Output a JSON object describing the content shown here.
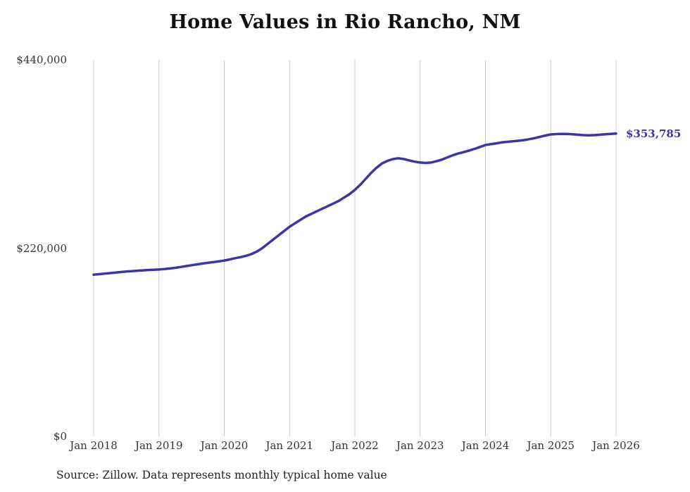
{
  "chart": {
    "title": "Home Values in Rio Rancho, NM",
    "end_label": "$353,785",
    "source": "Source: Zillow. Data represents monthly typical home value"
  },
  "colors": {
    "line": "#3b35a8",
    "grid": "#cccccc",
    "title": "#111111",
    "axis_text": "#333333",
    "source_text": "#222222"
  },
  "chart_data": {
    "type": "line",
    "title": "Home Values in Rio Rancho, NM",
    "series_name": "Monthly typical home value",
    "x_start": "2018-01",
    "x_end": "2026-01",
    "x_interval": "monthly",
    "ylim": [
      0,
      440000
    ],
    "grid": "vertical-only",
    "legend": "none",
    "y_ticks": [
      {
        "label": "$0",
        "value": 0
      },
      {
        "label": "$220,000",
        "value": 220000
      },
      {
        "label": "$440,000",
        "value": 440000
      }
    ],
    "x_ticks": [
      {
        "label": "Jan 2018",
        "index": 0
      },
      {
        "label": "Jan 2019",
        "index": 12
      },
      {
        "label": "Jan 2020",
        "index": 24
      },
      {
        "label": "Jan 2021",
        "index": 36
      },
      {
        "label": "Jan 2022",
        "index": 48
      },
      {
        "label": "Jan 2023",
        "index": 60
      },
      {
        "label": "Jan 2024",
        "index": 72
      },
      {
        "label": "Jan 2025",
        "index": 84
      },
      {
        "label": "Jan 2026",
        "index": 96
      }
    ],
    "values": [
      189000,
      189600,
      190200,
      190800,
      191400,
      192000,
      192600,
      193100,
      193600,
      194000,
      194400,
      194700,
      195000,
      195500,
      196200,
      197000,
      198000,
      199000,
      200000,
      201000,
      202000,
      202800,
      203600,
      204500,
      205500,
      206800,
      208200,
      209500,
      211000,
      213000,
      216000,
      220000,
      225000,
      230000,
      235000,
      240000,
      245000,
      249000,
      253000,
      257000,
      260000,
      263000,
      266000,
      269000,
      272000,
      275000,
      279000,
      283000,
      288000,
      294000,
      301000,
      308000,
      314000,
      319000,
      322000,
      324000,
      325000,
      324000,
      322500,
      321000,
      320000,
      319500,
      320000,
      321500,
      323500,
      326000,
      328500,
      330500,
      332200,
      334000,
      336000,
      338200,
      340500,
      341500,
      342500,
      343500,
      344200,
      344800,
      345400,
      346200,
      347200,
      348500,
      350000,
      351500,
      352800,
      353200,
      353400,
      353300,
      353000,
      352500,
      352000,
      351800,
      352000,
      352500,
      353100,
      353500,
      353785
    ],
    "end_value": 353785,
    "end_value_label": "$353,785"
  }
}
